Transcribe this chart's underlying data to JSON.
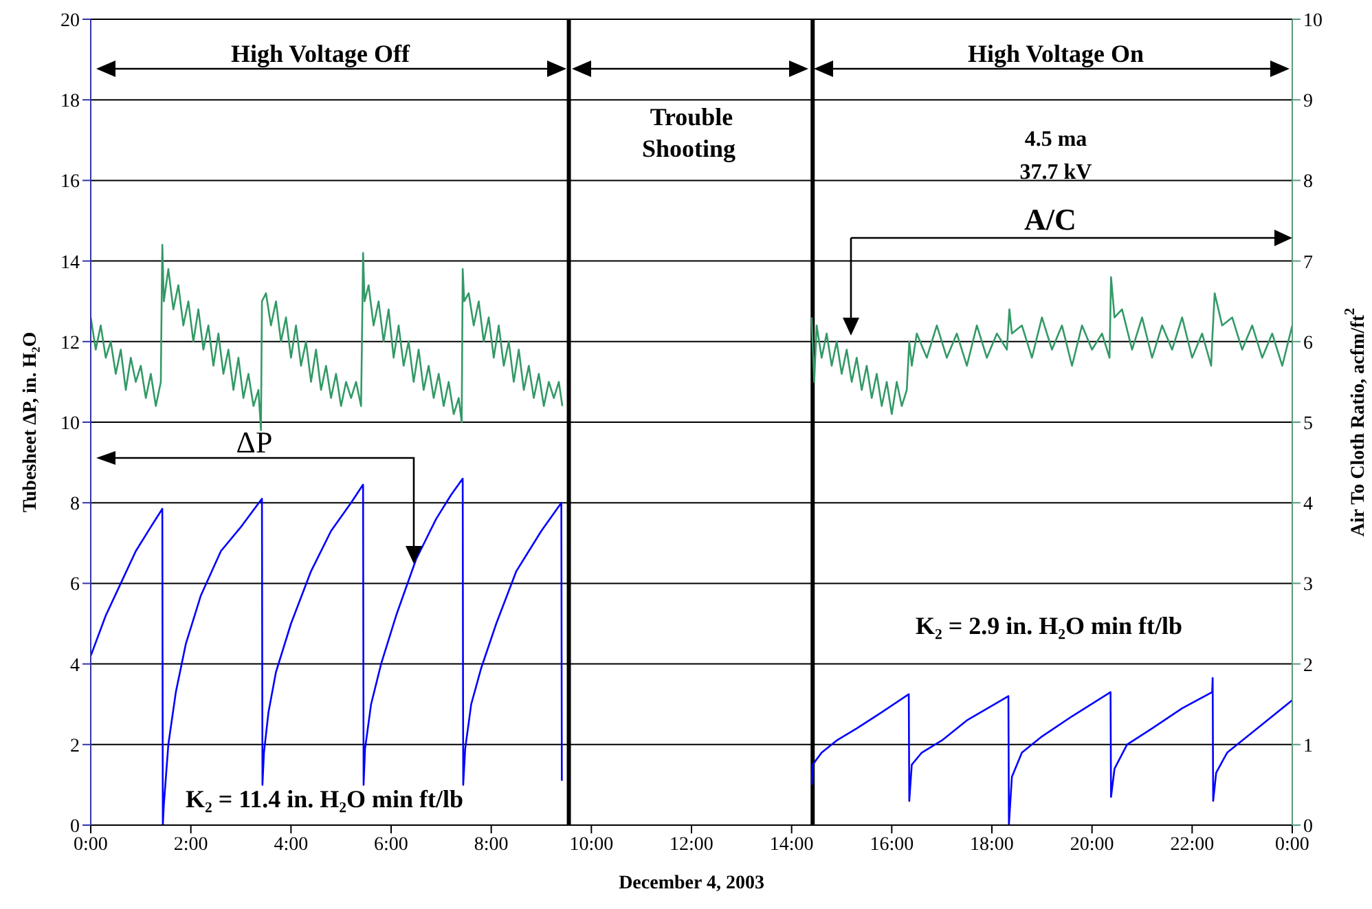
{
  "chart_data": {
    "type": "line",
    "xlabel": "December 4, 2003",
    "ylabel": "Tubesheet ΔP, in. H₂O",
    "y2label": "Air To Cloth Ratio, acfm/ft$^{2}$",
    "annotations": [
      "High Voltage Off",
      "Trouble Shooting",
      "High Voltage On",
      "4.5 ma",
      "37.7 kV",
      "A/C",
      "ΔP",
      "K₂ = 11.4 in. H₂O min ft/lb",
      "K₂ = 2.9 in. H₂O min ft/lb"
    ],
    "xlim": [
      0,
      24
    ],
    "xticks": [
      {
        "value": 0,
        "label": "0:00"
      },
      {
        "value": 2,
        "label": "2:00"
      },
      {
        "value": 4,
        "label": "4:00"
      },
      {
        "value": 6,
        "label": "6:00"
      },
      {
        "value": 8,
        "label": "8:00"
      },
      {
        "value": 10,
        "label": "10:00"
      },
      {
        "value": 12,
        "label": "12:00"
      },
      {
        "value": 14,
        "label": "14:00"
      },
      {
        "value": 16,
        "label": "16:00"
      },
      {
        "value": 18,
        "label": "18:00"
      },
      {
        "value": 20,
        "label": "20:00"
      },
      {
        "value": 22,
        "label": "22:00"
      },
      {
        "value": 24,
        "label": "0:00"
      }
    ],
    "ylim": [
      0,
      20
    ],
    "yticks": [
      0,
      2,
      4,
      6,
      8,
      10,
      12,
      14,
      16,
      18,
      20
    ],
    "y2lim": [
      0,
      10
    ],
    "y2ticks": [
      0,
      1,
      2,
      3,
      4,
      5,
      6,
      7,
      8,
      9,
      10
    ],
    "grid": "y",
    "marker": "none",
    "line_style": "solid",
    "ref_lines": [
      {
        "axis": "x",
        "value": 9.55,
        "color": "#000000"
      },
      {
        "axis": "x",
        "value": 14.42,
        "color": "#000000"
      }
    ],
    "series": [
      {
        "color": "#0000ff",
        "axis": "y",
        "x": [
          0,
          0.3,
          0.6,
          0.9,
          1.2,
          1.43,
          1.44,
          1.46,
          1.55,
          1.7,
          1.9,
          2.2,
          2.6,
          3.0,
          3.42,
          3.43,
          3.46,
          3.55,
          3.7,
          4.0,
          4.4,
          4.8,
          5.2,
          5.44,
          5.45,
          5.48,
          5.6,
          5.8,
          6.1,
          6.5,
          6.9,
          7.2,
          7.43,
          7.44,
          7.48,
          7.6,
          7.8,
          8.1,
          8.5,
          9.0,
          9.4,
          9.41,
          12,
          14.4,
          14.42,
          14.6,
          14.9,
          15.3,
          15.8,
          16.34,
          16.35,
          16.4,
          16.6,
          17.0,
          17.5,
          18.33,
          18.34,
          18.4,
          18.6,
          19.0,
          19.6,
          20.37,
          20.38,
          20.45,
          20.7,
          21.2,
          21.8,
          22.4,
          22.41,
          22.42,
          22.48,
          22.7,
          23.2,
          24
        ],
        "values": [
          4.2,
          5.2,
          6.0,
          6.8,
          7.4,
          7.85,
          0,
          0.5,
          2.0,
          3.3,
          4.5,
          5.7,
          6.8,
          7.4,
          8.1,
          1.0,
          1.8,
          2.8,
          3.8,
          5.0,
          6.3,
          7.3,
          8.0,
          8.45,
          1.0,
          1.9,
          3.0,
          4.0,
          5.2,
          6.6,
          7.6,
          8.2,
          8.6,
          1.0,
          1.9,
          3.0,
          3.9,
          5.0,
          6.3,
          7.3,
          8.0,
          1.1,
          null,
          1.0,
          1.5,
          1.8,
          2.1,
          2.4,
          2.8,
          3.25,
          0.6,
          1.5,
          1.8,
          2.1,
          2.6,
          3.2,
          0,
          1.2,
          1.8,
          2.2,
          2.7,
          3.3,
          0.7,
          1.4,
          2.0,
          2.4,
          2.9,
          3.3,
          3.65,
          0.6,
          1.3,
          1.8,
          2.3,
          3.1
        ]
      },
      {
        "color": "#339966",
        "axis": "y2",
        "x": [
          0,
          0.1,
          0.2,
          0.3,
          0.4,
          0.5,
          0.6,
          0.7,
          0.8,
          0.9,
          1.0,
          1.1,
          1.2,
          1.3,
          1.4,
          1.42,
          1.43,
          1.46,
          1.55,
          1.65,
          1.75,
          1.85,
          1.95,
          2.05,
          2.15,
          2.25,
          2.35,
          2.45,
          2.55,
          2.65,
          2.75,
          2.85,
          2.95,
          3.05,
          3.15,
          3.25,
          3.35,
          3.4,
          3.42,
          3.5,
          3.6,
          3.7,
          3.8,
          3.9,
          4.0,
          4.1,
          4.2,
          4.3,
          4.4,
          4.5,
          4.6,
          4.7,
          4.8,
          4.9,
          5.0,
          5.1,
          5.2,
          5.3,
          5.4,
          5.43,
          5.44,
          5.47,
          5.55,
          5.65,
          5.75,
          5.85,
          5.95,
          6.05,
          6.15,
          6.25,
          6.35,
          6.45,
          6.55,
          6.65,
          6.75,
          6.85,
          6.95,
          7.05,
          7.15,
          7.25,
          7.35,
          7.41,
          7.43,
          7.46,
          7.55,
          7.65,
          7.75,
          7.85,
          7.95,
          8.05,
          8.15,
          8.25,
          8.35,
          8.45,
          8.55,
          8.65,
          8.75,
          8.85,
          8.95,
          9.05,
          9.15,
          9.25,
          9.35,
          9.42,
          12,
          14.4,
          14.45,
          14.5,
          14.6,
          14.7,
          14.8,
          14.9,
          15.0,
          15.1,
          15.2,
          15.3,
          15.4,
          15.5,
          15.6,
          15.7,
          15.8,
          15.9,
          16.0,
          16.1,
          16.2,
          16.3,
          16.35,
          16.4,
          16.5,
          16.7,
          16.9,
          17.1,
          17.3,
          17.5,
          17.7,
          17.9,
          18.1,
          18.3,
          18.35,
          18.4,
          18.6,
          18.8,
          19.0,
          19.2,
          19.4,
          19.6,
          19.8,
          20.0,
          20.2,
          20.35,
          20.38,
          20.45,
          20.6,
          20.8,
          21.0,
          21.2,
          21.4,
          21.6,
          21.8,
          22.0,
          22.2,
          22.38,
          22.4,
          22.45,
          22.6,
          22.8,
          23.0,
          23.2,
          23.4,
          23.6,
          23.8,
          24
        ],
        "values": [
          6.3,
          5.9,
          6.2,
          5.8,
          6.0,
          5.6,
          5.9,
          5.4,
          5.8,
          5.5,
          5.7,
          5.3,
          5.6,
          5.2,
          5.5,
          6.7,
          7.2,
          6.5,
          6.9,
          6.4,
          6.7,
          6.2,
          6.5,
          6.0,
          6.4,
          5.9,
          6.2,
          5.7,
          6.1,
          5.6,
          5.9,
          5.4,
          5.8,
          5.3,
          5.6,
          5.2,
          5.4,
          4.9,
          6.5,
          6.6,
          6.2,
          6.5,
          6.0,
          6.3,
          5.8,
          6.2,
          5.7,
          6.0,
          5.5,
          5.9,
          5.4,
          5.7,
          5.3,
          5.6,
          5.2,
          5.5,
          5.3,
          5.5,
          5.2,
          6.6,
          7.1,
          6.5,
          6.7,
          6.2,
          6.5,
          6.0,
          6.4,
          5.8,
          6.2,
          5.7,
          6.0,
          5.5,
          5.9,
          5.4,
          5.7,
          5.3,
          5.6,
          5.2,
          5.5,
          5.1,
          5.3,
          5.0,
          6.9,
          6.5,
          6.6,
          6.2,
          6.5,
          6.0,
          6.3,
          5.8,
          6.2,
          5.7,
          6.0,
          5.5,
          5.9,
          5.4,
          5.7,
          5.3,
          5.6,
          5.2,
          5.5,
          5.3,
          5.5,
          5.2,
          null,
          6.3,
          5.5,
          6.2,
          5.8,
          6.1,
          5.7,
          6.0,
          5.6,
          5.9,
          5.5,
          5.8,
          5.4,
          5.7,
          5.3,
          5.6,
          5.2,
          5.5,
          5.1,
          5.5,
          5.2,
          5.4,
          6.0,
          5.7,
          6.1,
          5.8,
          6.2,
          5.8,
          6.1,
          5.7,
          6.2,
          5.8,
          6.1,
          5.9,
          6.4,
          6.1,
          6.2,
          5.8,
          6.3,
          5.9,
          6.2,
          5.7,
          6.2,
          5.9,
          6.1,
          5.8,
          6.8,
          6.3,
          6.4,
          5.9,
          6.3,
          5.8,
          6.2,
          5.9,
          6.3,
          5.8,
          6.1,
          5.7,
          6.0,
          6.6,
          6.2,
          6.3,
          5.9,
          6.2,
          5.8,
          6.1,
          5.7,
          6.2
        ]
      }
    ]
  }
}
